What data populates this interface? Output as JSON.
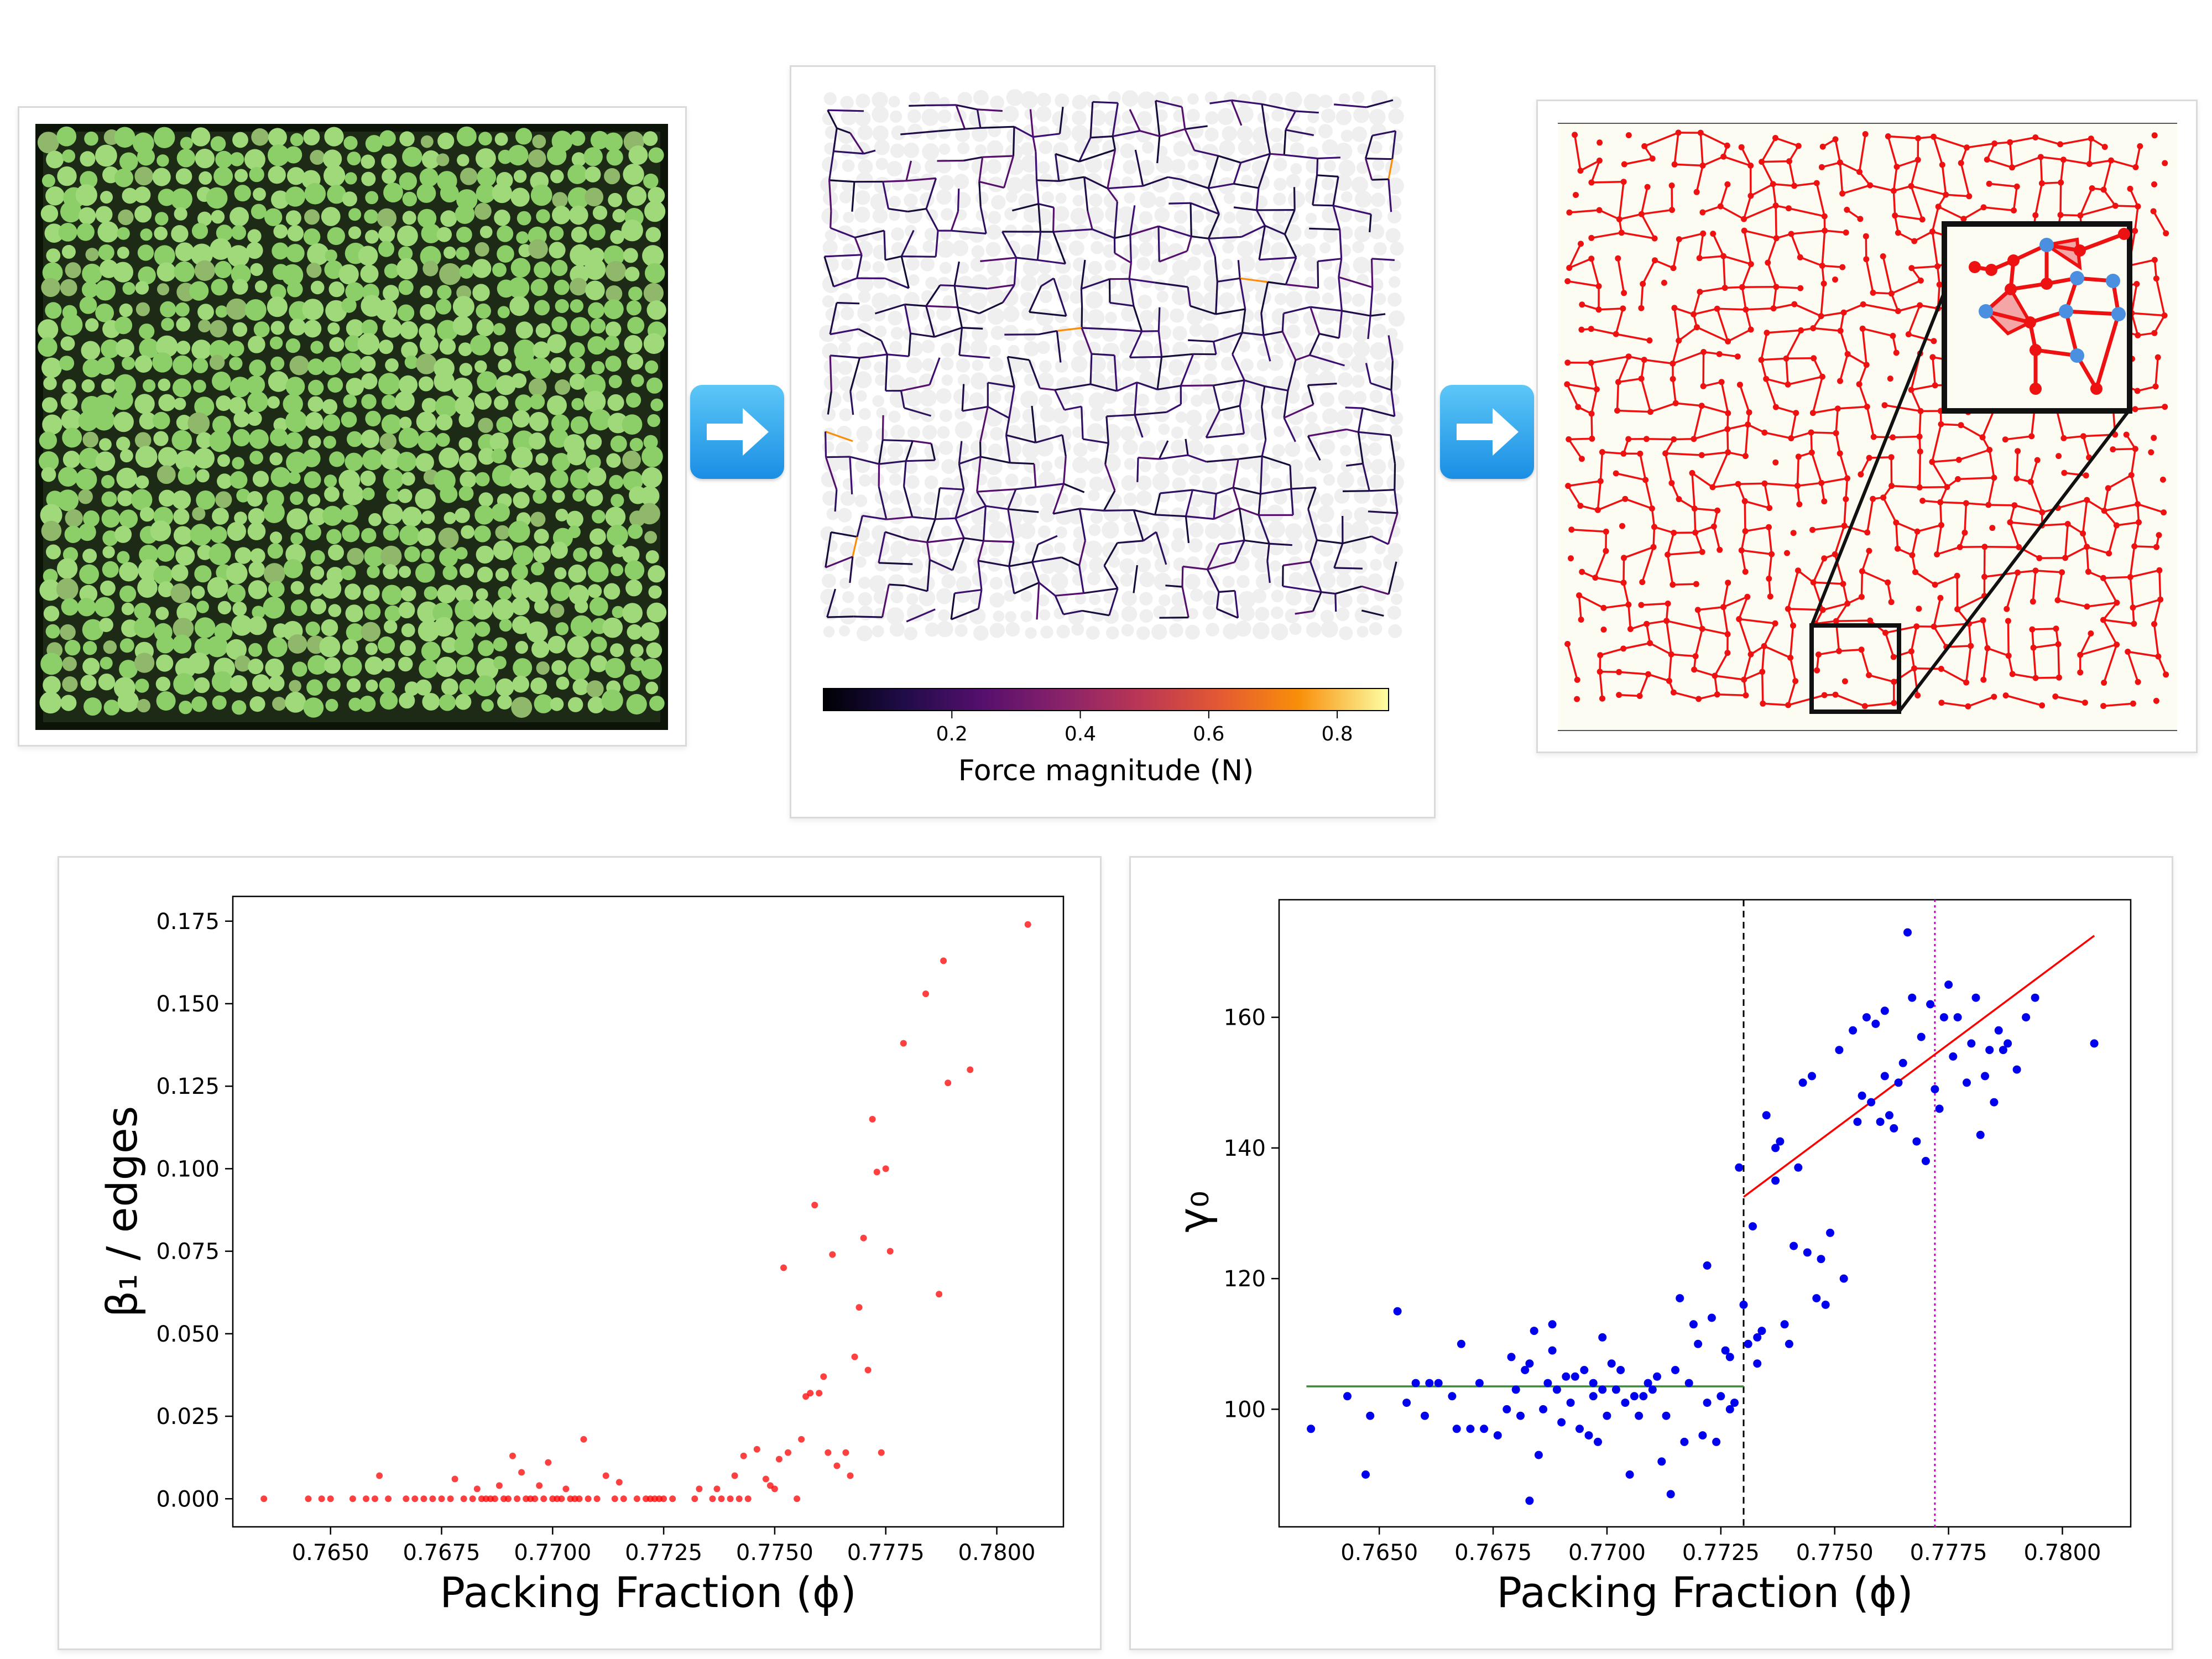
{
  "top": {
    "arrow1_icon": "right-arrow-icon",
    "arrow2_icon": "right-arrow-icon",
    "colorbar": {
      "label": "Force magnitude (N)",
      "ticks": [
        0.2,
        0.4,
        0.6,
        0.8
      ],
      "range": [
        0.0,
        0.88
      ]
    }
  },
  "chart_data": [
    {
      "type": "scatter",
      "xlabel": "Packing Fraction (ϕ)",
      "ylabel": "β₁ / edges",
      "xlim": [
        0.7628,
        0.7815
      ],
      "ylim": [
        -0.0085,
        0.1825
      ],
      "xticks": [
        "0.7650",
        "0.7675",
        "0.7700",
        "0.7725",
        "0.7750",
        "0.7775",
        "0.7800"
      ],
      "yticks": [
        "0.000",
        "0.025",
        "0.050",
        "0.075",
        "0.100",
        "0.125",
        "0.150",
        "0.175"
      ],
      "color": "#ff0000",
      "points": [
        [
          0.7635,
          0.0
        ],
        [
          0.7645,
          0.0
        ],
        [
          0.7648,
          0.0
        ],
        [
          0.765,
          0.0
        ],
        [
          0.7655,
          0.0
        ],
        [
          0.7658,
          0.0
        ],
        [
          0.766,
          0.0
        ],
        [
          0.7661,
          0.007
        ],
        [
          0.7663,
          0.0
        ],
        [
          0.7667,
          0.0
        ],
        [
          0.7669,
          0.0
        ],
        [
          0.7671,
          0.0
        ],
        [
          0.7673,
          0.0
        ],
        [
          0.7675,
          0.0
        ],
        [
          0.7677,
          0.0
        ],
        [
          0.7678,
          0.006
        ],
        [
          0.768,
          0.0
        ],
        [
          0.7682,
          0.0
        ],
        [
          0.7683,
          0.003
        ],
        [
          0.7684,
          0.0
        ],
        [
          0.7685,
          0.0
        ],
        [
          0.7686,
          0.0
        ],
        [
          0.7687,
          0.0
        ],
        [
          0.7688,
          0.004
        ],
        [
          0.7689,
          0.0
        ],
        [
          0.769,
          0.0
        ],
        [
          0.7691,
          0.013
        ],
        [
          0.7692,
          0.0
        ],
        [
          0.7693,
          0.008
        ],
        [
          0.7694,
          0.0
        ],
        [
          0.7695,
          0.0
        ],
        [
          0.7696,
          0.0
        ],
        [
          0.7697,
          0.004
        ],
        [
          0.7698,
          0.0
        ],
        [
          0.7699,
          0.011
        ],
        [
          0.77,
          0.0
        ],
        [
          0.7701,
          0.0
        ],
        [
          0.7702,
          0.0
        ],
        [
          0.7703,
          0.003
        ],
        [
          0.7704,
          0.0
        ],
        [
          0.7705,
          0.0
        ],
        [
          0.7706,
          0.0
        ],
        [
          0.7707,
          0.018
        ],
        [
          0.7708,
          0.0
        ],
        [
          0.771,
          0.0
        ],
        [
          0.7712,
          0.007
        ],
        [
          0.7714,
          0.0
        ],
        [
          0.7715,
          0.005
        ],
        [
          0.7716,
          0.0
        ],
        [
          0.7719,
          0.0
        ],
        [
          0.7721,
          0.0
        ],
        [
          0.7722,
          0.0
        ],
        [
          0.7723,
          0.0
        ],
        [
          0.7724,
          0.0
        ],
        [
          0.7725,
          0.0
        ],
        [
          0.7727,
          0.0
        ],
        [
          0.7732,
          0.0
        ],
        [
          0.7733,
          0.003
        ],
        [
          0.7736,
          0.0
        ],
        [
          0.7737,
          0.003
        ],
        [
          0.7738,
          0.0
        ],
        [
          0.774,
          0.0
        ],
        [
          0.7741,
          0.007
        ],
        [
          0.7742,
          0.0
        ],
        [
          0.7743,
          0.013
        ],
        [
          0.7744,
          0.0
        ],
        [
          0.7746,
          0.015
        ],
        [
          0.7748,
          0.006
        ],
        [
          0.7749,
          0.004
        ],
        [
          0.775,
          0.003
        ],
        [
          0.7751,
          0.012
        ],
        [
          0.7752,
          0.07
        ],
        [
          0.7753,
          0.014
        ],
        [
          0.7755,
          0.0
        ],
        [
          0.7756,
          0.018
        ],
        [
          0.7757,
          0.031
        ],
        [
          0.7758,
          0.032
        ],
        [
          0.7759,
          0.089
        ],
        [
          0.776,
          0.032
        ],
        [
          0.7761,
          0.037
        ],
        [
          0.7762,
          0.014
        ],
        [
          0.7763,
          0.074
        ],
        [
          0.7764,
          0.01
        ],
        [
          0.7766,
          0.014
        ],
        [
          0.7767,
          0.007
        ],
        [
          0.7768,
          0.043
        ],
        [
          0.7769,
          0.058
        ],
        [
          0.777,
          0.079
        ],
        [
          0.7771,
          0.039
        ],
        [
          0.7772,
          0.115
        ],
        [
          0.7773,
          0.099
        ],
        [
          0.7774,
          0.014
        ],
        [
          0.7775,
          0.1
        ],
        [
          0.7776,
          0.075
        ],
        [
          0.7779,
          0.138
        ],
        [
          0.7784,
          0.153
        ],
        [
          0.7787,
          0.062
        ],
        [
          0.7788,
          0.163
        ],
        [
          0.7789,
          0.126
        ],
        [
          0.7794,
          0.13
        ],
        [
          0.7807,
          0.174
        ]
      ]
    },
    {
      "type": "scatter",
      "xlabel": "Packing Fraction (ϕ)",
      "ylabel": "γ₀",
      "xlim": [
        0.7628,
        0.7815
      ],
      "ylim": [
        82,
        178
      ],
      "xticks": [
        "0.7650",
        "0.7675",
        "0.7700",
        "0.7725",
        "0.7750",
        "0.7775",
        "0.7800"
      ],
      "yticks": [
        "100",
        "120",
        "140",
        "160"
      ],
      "color": "#0000ee",
      "fits": [
        {
          "x": [
            0.7634,
            0.773
          ],
          "y": [
            103.5,
            103.5
          ],
          "color": "#3a8a3a"
        },
        {
          "x": [
            0.773,
            0.7807
          ],
          "y": [
            132.5,
            172.5
          ],
          "color": "#ff0000"
        }
      ],
      "vlines": [
        {
          "x": 0.773,
          "color": "#000000",
          "style": "dashed"
        },
        {
          "x": 0.7772,
          "color": "#cc00cc",
          "style": "dotted"
        }
      ],
      "points": [
        [
          0.7635,
          97
        ],
        [
          0.7643,
          102
        ],
        [
          0.7647,
          90
        ],
        [
          0.7648,
          99
        ],
        [
          0.7654,
          115
        ],
        [
          0.7656,
          101
        ],
        [
          0.7658,
          104
        ],
        [
          0.766,
          99
        ],
        [
          0.7661,
          104
        ],
        [
          0.7663,
          104
        ],
        [
          0.7666,
          102
        ],
        [
          0.7667,
          97
        ],
        [
          0.7668,
          110
        ],
        [
          0.767,
          97
        ],
        [
          0.7672,
          104
        ],
        [
          0.7673,
          97
        ],
        [
          0.7676,
          96
        ],
        [
          0.7678,
          100
        ],
        [
          0.7679,
          108
        ],
        [
          0.768,
          103
        ],
        [
          0.7681,
          99
        ],
        [
          0.7682,
          106
        ],
        [
          0.7683,
          86
        ],
        [
          0.7683,
          107
        ],
        [
          0.7684,
          112
        ],
        [
          0.7685,
          93
        ],
        [
          0.7686,
          100
        ],
        [
          0.7687,
          104
        ],
        [
          0.7688,
          109
        ],
        [
          0.7688,
          113
        ],
        [
          0.7689,
          103
        ],
        [
          0.769,
          98
        ],
        [
          0.7691,
          105
        ],
        [
          0.7692,
          101
        ],
        [
          0.7693,
          105
        ],
        [
          0.7694,
          97
        ],
        [
          0.7695,
          106
        ],
        [
          0.7696,
          96
        ],
        [
          0.7697,
          104
        ],
        [
          0.7697,
          102
        ],
        [
          0.7698,
          95
        ],
        [
          0.7699,
          103
        ],
        [
          0.7699,
          111
        ],
        [
          0.77,
          99
        ],
        [
          0.7701,
          107
        ],
        [
          0.7702,
          103
        ],
        [
          0.7703,
          106
        ],
        [
          0.7704,
          101
        ],
        [
          0.7705,
          90
        ],
        [
          0.7706,
          102
        ],
        [
          0.7707,
          99
        ],
        [
          0.7708,
          102
        ],
        [
          0.7709,
          104
        ],
        [
          0.771,
          103
        ],
        [
          0.7711,
          105
        ],
        [
          0.7712,
          92
        ],
        [
          0.7713,
          99
        ],
        [
          0.7714,
          87
        ],
        [
          0.7715,
          106
        ],
        [
          0.7716,
          117
        ],
        [
          0.7717,
          95
        ],
        [
          0.7718,
          104
        ],
        [
          0.7719,
          113
        ],
        [
          0.772,
          110
        ],
        [
          0.7721,
          96
        ],
        [
          0.7722,
          101
        ],
        [
          0.7722,
          122
        ],
        [
          0.7723,
          114
        ],
        [
          0.7724,
          95
        ],
        [
          0.7725,
          102
        ],
        [
          0.7726,
          109
        ],
        [
          0.7727,
          108
        ],
        [
          0.7727,
          100
        ],
        [
          0.7728,
          101
        ],
        [
          0.7729,
          137
        ],
        [
          0.773,
          116
        ],
        [
          0.7731,
          110
        ],
        [
          0.7732,
          128
        ],
        [
          0.7733,
          111
        ],
        [
          0.7733,
          107
        ],
        [
          0.7734,
          112
        ],
        [
          0.7735,
          145
        ],
        [
          0.7737,
          140
        ],
        [
          0.7737,
          135
        ],
        [
          0.7738,
          141
        ],
        [
          0.7739,
          113
        ],
        [
          0.774,
          110
        ],
        [
          0.7741,
          125
        ],
        [
          0.7742,
          137
        ],
        [
          0.7743,
          150
        ],
        [
          0.7744,
          124
        ],
        [
          0.7745,
          151
        ],
        [
          0.7746,
          117
        ],
        [
          0.7747,
          123
        ],
        [
          0.7748,
          116
        ],
        [
          0.7749,
          127
        ],
        [
          0.7751,
          155
        ],
        [
          0.7752,
          120
        ],
        [
          0.7754,
          158
        ],
        [
          0.7755,
          144
        ],
        [
          0.7756,
          148
        ],
        [
          0.7757,
          160
        ],
        [
          0.7758,
          147
        ],
        [
          0.7759,
          159
        ],
        [
          0.776,
          144
        ],
        [
          0.7761,
          161
        ],
        [
          0.7761,
          151
        ],
        [
          0.7762,
          145
        ],
        [
          0.7763,
          143
        ],
        [
          0.7764,
          150
        ],
        [
          0.7765,
          153
        ],
        [
          0.7766,
          173
        ],
        [
          0.7767,
          163
        ],
        [
          0.7768,
          141
        ],
        [
          0.7769,
          157
        ],
        [
          0.777,
          138
        ],
        [
          0.7771,
          162
        ],
        [
          0.7772,
          149
        ],
        [
          0.7773,
          146
        ],
        [
          0.7774,
          160
        ],
        [
          0.7775,
          165
        ],
        [
          0.7776,
          154
        ],
        [
          0.7777,
          160
        ],
        [
          0.7779,
          150
        ],
        [
          0.778,
          156
        ],
        [
          0.7781,
          163
        ],
        [
          0.7782,
          142
        ],
        [
          0.7783,
          151
        ],
        [
          0.7784,
          155
        ],
        [
          0.7785,
          147
        ],
        [
          0.7786,
          158
        ],
        [
          0.7787,
          155
        ],
        [
          0.7788,
          156
        ],
        [
          0.779,
          152
        ],
        [
          0.7792,
          160
        ],
        [
          0.7794,
          163
        ],
        [
          0.7807,
          156
        ]
      ]
    }
  ]
}
